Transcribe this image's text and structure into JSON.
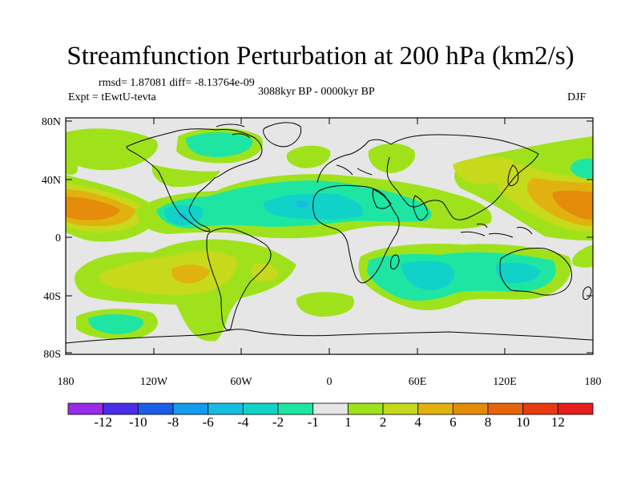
{
  "title": "Streamfunction Perturbation at 200 hPa (km2/s)",
  "stats": "rmsd= 1.87081  diff= -8.13764e-09",
  "experiment": "Expt = tEwtU-tevta",
  "period": "3088kyr BP - 0000kyr BP",
  "season": "DJF",
  "y_axis_ticks": [
    "80N",
    "40N",
    "0",
    "40S",
    "80S"
  ],
  "x_axis_ticks": [
    "180",
    "120W",
    "60W",
    "0",
    "60E",
    "120E",
    "180"
  ],
  "colorbar": {
    "labels": [
      "-12",
      "-10",
      "-8",
      "-6",
      "-4",
      "-2",
      "-1",
      "1",
      "2",
      "4",
      "6",
      "8",
      "10",
      "12"
    ],
    "colors": [
      "#9a2be8",
      "#4b2ee8",
      "#1a5ee8",
      "#139bec",
      "#17bde0",
      "#10d2c8",
      "#1ee6a2",
      "#e6e6e6",
      "#9fe21c",
      "#c6d91a",
      "#e1b20f",
      "#e58c0b",
      "#e6650c",
      "#e63a10",
      "#e61e1e"
    ]
  }
}
